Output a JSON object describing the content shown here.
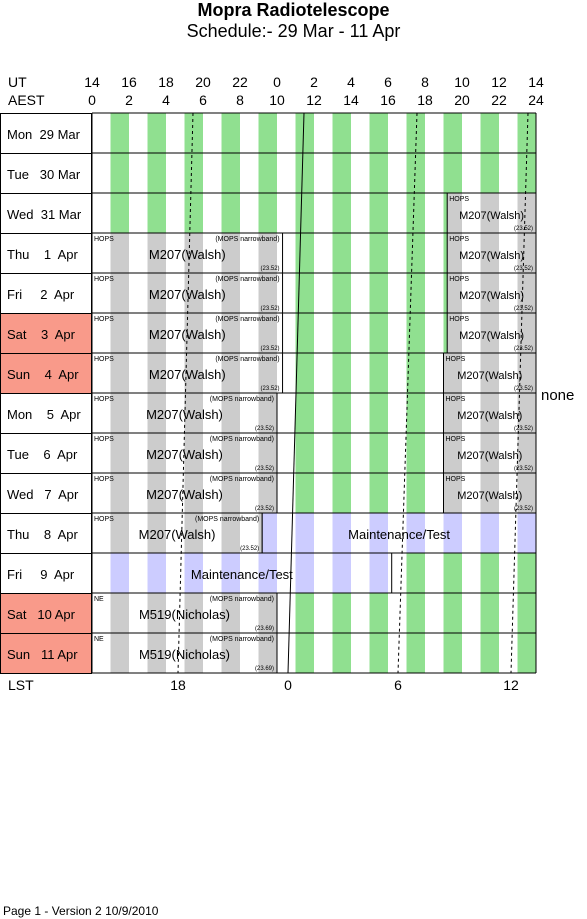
{
  "title": "Mopra Radiotelescope",
  "subtitle": "Schedule:- 29 Mar - 11 Apr",
  "header": {
    "ut_label": "UT",
    "aest_label": "AEST",
    "ut_ticks": [
      "14",
      "16",
      "18",
      "20",
      "22",
      "0",
      "2",
      "4",
      "6",
      "8",
      "10",
      "12",
      "14"
    ],
    "aest_ticks": [
      "0",
      "2",
      "4",
      "6",
      "8",
      "10",
      "12",
      "14",
      "16",
      "18",
      "20",
      "22",
      "24"
    ]
  },
  "lst": {
    "label": "LST",
    "ticks": [
      "18",
      "0",
      "6",
      "12"
    ]
  },
  "none_label": "none",
  "footer": "Page 1 - Version 2  10/9/2010",
  "colors": {
    "green": "#90e090",
    "grey": "#cccccc",
    "blue": "#ccccff",
    "weekend": "#f99a8a"
  },
  "days": [
    {
      "label": "Mon  29 Mar",
      "weekend": false
    },
    {
      "label": "Tue   30 Mar",
      "weekend": false
    },
    {
      "label": "Wed  31 Mar",
      "weekend": false
    },
    {
      "label": "Thu    1  Apr",
      "weekend": false
    },
    {
      "label": "Fri     2  Apr",
      "weekend": false
    },
    {
      "label": "Sat    3  Apr",
      "weekend": true
    },
    {
      "label": "Sun    4  Apr",
      "weekend": true
    },
    {
      "label": "Mon    5  Apr",
      "weekend": false
    },
    {
      "label": "Tue    6  Apr",
      "weekend": false
    },
    {
      "label": "Wed   7  Apr",
      "weekend": false
    },
    {
      "label": "Thu    8  Apr",
      "weekend": false
    },
    {
      "label": "Fri     9  Apr",
      "weekend": false
    },
    {
      "label": "Sat   10 Apr",
      "weekend": true
    },
    {
      "label": "Sun   11 Apr",
      "weekend": true
    }
  ],
  "blocks": [
    {
      "row": 2,
      "type": "HOPS",
      "project": "M207(Walsh)",
      "note": "",
      "lst": "(23.52)"
    },
    {
      "row": 3,
      "type": "HOPS",
      "project": "M207(Walsh)",
      "note": "(MOPS narrowband)",
      "lst": "(23.52)"
    },
    {
      "row": 3,
      "type": "HOPS",
      "project": "M207(Walsh)",
      "note": "",
      "lst": "(23.52)"
    },
    {
      "row": 4,
      "type": "HOPS",
      "project": "M207(Walsh)",
      "note": "(MOPS narrowband)",
      "lst": "(23.52)"
    },
    {
      "row": 4,
      "type": "HOPS",
      "project": "M207(Walsh)",
      "note": "",
      "lst": "(23.52)"
    },
    {
      "row": 5,
      "type": "HOPS",
      "project": "M207(Walsh)",
      "note": "(MOPS narrowband)",
      "lst": "(23.52)"
    },
    {
      "row": 5,
      "type": "HOPS",
      "project": "M207(Walsh)",
      "note": "",
      "lst": "(23.52)"
    },
    {
      "row": 6,
      "type": "HOPS",
      "project": "M207(Walsh)",
      "note": "(MOPS narrowband)",
      "lst": "(23.52)"
    },
    {
      "row": 6,
      "type": "HOPS",
      "project": "M207(Walsh)",
      "note": "",
      "lst": "(23.52)"
    },
    {
      "row": 7,
      "type": "HOPS",
      "project": "M207(Walsh)",
      "note": "(MOPS narrowband)",
      "lst": "(23.52)"
    },
    {
      "row": 7,
      "type": "HOPS",
      "project": "M207(Walsh)",
      "note": "",
      "lst": "(23.52)"
    },
    {
      "row": 8,
      "type": "HOPS",
      "project": "M207(Walsh)",
      "note": "(MOPS narrowband)",
      "lst": "(23.52)"
    },
    {
      "row": 8,
      "type": "HOPS",
      "project": "M207(Walsh)",
      "note": "",
      "lst": "(23.52)"
    },
    {
      "row": 9,
      "type": "HOPS",
      "project": "M207(Walsh)",
      "note": "(MOPS narrowband)",
      "lst": "(23.52)"
    },
    {
      "row": 9,
      "type": "HOPS",
      "project": "M207(Walsh)",
      "note": "",
      "lst": "(23.52)"
    },
    {
      "row": 10,
      "type": "HOPS",
      "project": "M207(Walsh)",
      "note": "(MOPS narrowband)",
      "lst": "(23.52)"
    },
    {
      "row": 10,
      "type": "",
      "project": "Maintenance/Test",
      "note": "",
      "lst": ""
    },
    {
      "row": 11,
      "type": "",
      "project": "Maintenance/Test",
      "note": "",
      "lst": ""
    },
    {
      "row": 12,
      "type": "NE",
      "project": "M519(Nicholas)",
      "note": "(MOPS narrowband)",
      "lst": "(23.69)"
    },
    {
      "row": 13,
      "type": "NE",
      "project": "M519(Nicholas)",
      "note": "(MOPS narrowband)",
      "lst": "(23.69)"
    }
  ]
}
